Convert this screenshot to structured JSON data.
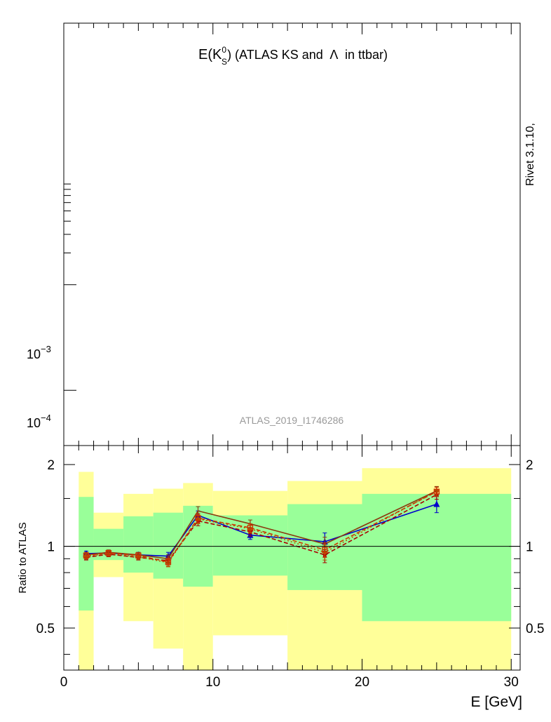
{
  "chart_data": [
    {
      "type": "line",
      "panel": "main",
      "title": "E(K_S^0) (ATLAS KS and Λ in ttbar)",
      "title_parts": {
        "prefix": "E(K",
        "sup": "0",
        "sub": "S",
        "suffix": ") (ATLAS KS and",
        "lambda": "Λ",
        "tail": "in ttbar)"
      },
      "watermark": "ATLAS_2019_I1746286",
      "side_label": "Rivet 3.1.10,",
      "yscale": "log",
      "ylim": [
        3e-05,
        0.3
      ],
      "xlim": [
        0,
        30.6
      ],
      "ytick_labels": [
        {
          "base": "10",
          "exp": "−3",
          "value": 0.001
        },
        {
          "base": "10",
          "exp": "−4",
          "value": 0.0001
        }
      ],
      "series": []
    },
    {
      "type": "line",
      "panel": "ratio",
      "xlabel": "E [GeV]",
      "ylabel": "Ratio to ATLAS",
      "yscale": "log",
      "xlim": [
        0,
        30.6
      ],
      "ylim": [
        0.35,
        2.35
      ],
      "reference_line": 1,
      "xticks": [
        0,
        10,
        20,
        30
      ],
      "xtick_labels": [
        "0",
        "10",
        "20",
        "30"
      ],
      "yticks": [
        0.5,
        1,
        2
      ],
      "ytick_labels": [
        "0.5",
        "1",
        "2"
      ],
      "bands": [
        {
          "x0": 1,
          "x1": 2,
          "inner": [
            0.58,
            1.52
          ],
          "outer": [
            0.3,
            1.88
          ]
        },
        {
          "x0": 2,
          "x1": 4,
          "inner": [
            0.89,
            1.16
          ],
          "outer": [
            0.77,
            1.33
          ]
        },
        {
          "x0": 4,
          "x1": 6,
          "inner": [
            0.8,
            1.29
          ],
          "outer": [
            0.53,
            1.56
          ]
        },
        {
          "x0": 6,
          "x1": 8,
          "inner": [
            0.76,
            1.33
          ],
          "outer": [
            0.42,
            1.63
          ]
        },
        {
          "x0": 8,
          "x1": 10,
          "inner": [
            0.71,
            1.41
          ],
          "outer": [
            0.2,
            1.71
          ]
        },
        {
          "x0": 10,
          "x1": 15,
          "inner": [
            0.78,
            1.3
          ],
          "outer": [
            0.47,
            1.6
          ]
        },
        {
          "x0": 15,
          "x1": 20,
          "inner": [
            0.69,
            1.43
          ],
          "outer": [
            0.2,
            1.74
          ]
        },
        {
          "x0": 20,
          "x1": 30,
          "inner": [
            0.53,
            1.56
          ],
          "outer": [
            0.2,
            1.94
          ]
        }
      ],
      "series": [
        {
          "color": "#0000cc",
          "style": "solid",
          "marker": "triangle-up",
          "x": [
            1.5,
            3,
            5,
            7,
            9,
            12.5,
            17.5,
            25
          ],
          "y": [
            0.94,
            0.945,
            0.93,
            0.92,
            1.3,
            1.1,
            1.04,
            1.43
          ],
          "err": [
            0.02,
            0.02,
            0.02,
            0.03,
            0.05,
            0.04,
            0.08,
            0.1
          ]
        },
        {
          "color": "#aa0000",
          "style": "dashed",
          "marker": "star",
          "x": [
            1.5,
            3,
            5,
            7,
            9,
            12.5,
            17.5,
            25
          ],
          "y": [
            0.91,
            0.935,
            0.91,
            0.885,
            1.24,
            1.13,
            0.93,
            1.55
          ],
          "err": [
            0.02,
            0.02,
            0.02,
            0.03,
            0.05,
            0.04,
            0.06,
            0.06
          ]
        },
        {
          "color": "#b05a00",
          "style": "dotted",
          "marker": "circle",
          "x": [
            1.5,
            3,
            5,
            7,
            9,
            12.5,
            17.5,
            25
          ],
          "y": [
            0.92,
            0.94,
            0.915,
            0.87,
            1.26,
            1.16,
            0.95,
            1.6
          ],
          "err": [
            0.02,
            0.02,
            0.02,
            0.03,
            0.05,
            0.04,
            0.06,
            0.06
          ]
        },
        {
          "color": "#8b3a10",
          "style": "solid",
          "marker": "none",
          "x": [
            1.5,
            3,
            5,
            7,
            9,
            12.5,
            17.5,
            25
          ],
          "y": [
            0.93,
            0.95,
            0.93,
            0.9,
            1.35,
            1.21,
            1.02,
            1.6
          ],
          "err": [
            0.02,
            0.02,
            0.02,
            0.03,
            0.05,
            0.04,
            0.06,
            0.06
          ]
        },
        {
          "color": "#cc3300",
          "style": "dashed",
          "marker": "square-open",
          "x": [
            1.5,
            3,
            5,
            7,
            9,
            12.5,
            17.5,
            25
          ],
          "y": [
            0.925,
            0.945,
            0.925,
            0.875,
            1.27,
            1.17,
            0.97,
            1.59
          ],
          "err": [
            0.02,
            0.02,
            0.02,
            0.03,
            0.05,
            0.04,
            0.06,
            0.06
          ]
        }
      ]
    }
  ]
}
